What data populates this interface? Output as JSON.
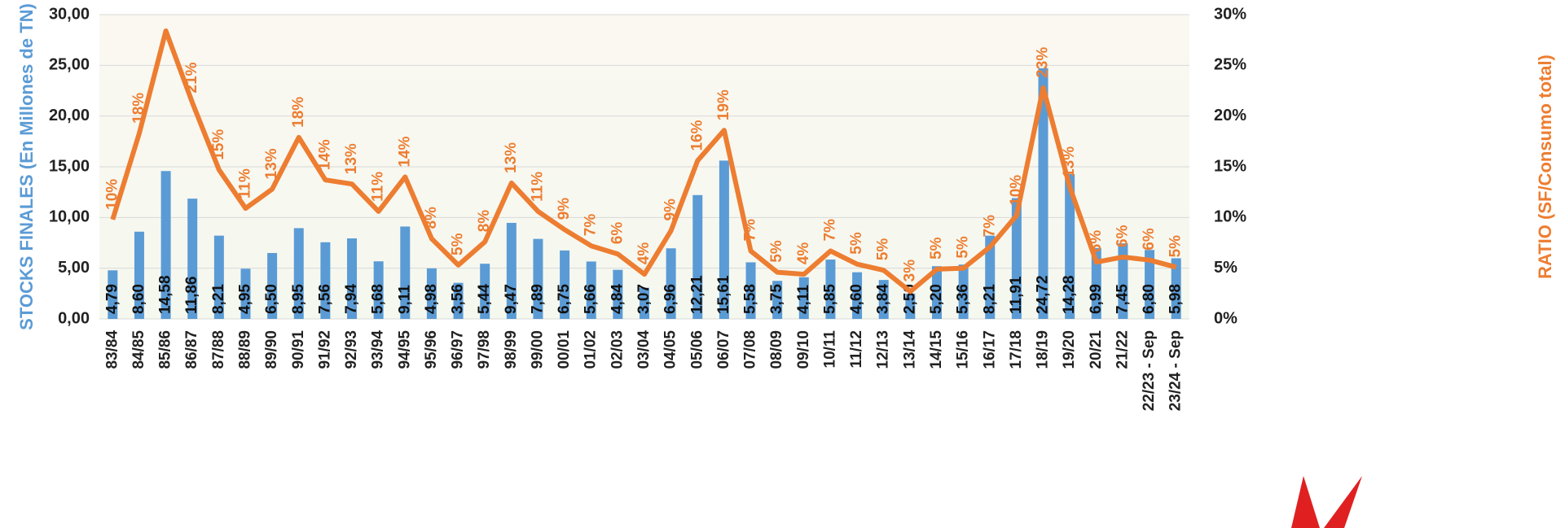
{
  "chart_data": {
    "type": "bar",
    "y_label": "STOCKS FINALES (En Millones de TN)",
    "y2_label": "RATIO (SF/Consumo total)",
    "categories": [
      "83/84",
      "84/85",
      "85/86",
      "86/87",
      "87/88",
      "88/89",
      "89/90",
      "90/91",
      "91/92",
      "92/93",
      "93/94",
      "94/95",
      "95/96",
      "96/97",
      "97/98",
      "98/99",
      "99/00",
      "00/01",
      "01/02",
      "02/03",
      "03/04",
      "04/05",
      "05/06",
      "06/07",
      "07/08",
      "08/09",
      "09/10",
      "10/11",
      "11/12",
      "12/13",
      "13/14",
      "14/15",
      "15/16",
      "16/17",
      "17/18",
      "18/19",
      "19/20",
      "20/21",
      "21/22",
      "22/23 - Sep",
      "23/24 - Sep"
    ],
    "series": [
      {
        "type": "bar",
        "color": "#5b9bd5",
        "values": [
          4.79,
          8.6,
          14.58,
          11.86,
          8.21,
          4.95,
          6.5,
          8.95,
          7.56,
          7.94,
          5.68,
          9.11,
          4.98,
          3.56,
          5.44,
          9.47,
          7.89,
          6.75,
          5.66,
          4.84,
          3.07,
          6.96,
          12.21,
          15.61,
          5.58,
          3.75,
          4.11,
          5.85,
          4.6,
          3.84,
          2.5,
          5.2,
          5.36,
          8.21,
          11.91,
          24.72,
          14.28,
          6.99,
          7.45,
          6.8,
          5.98
        ],
        "value_labels": [
          "4,79",
          "8,60",
          "14,58",
          "11,86",
          "8,21",
          "4,95",
          "6,50",
          "8,95",
          "7,56",
          "7,94",
          "5,68",
          "9,11",
          "4,98",
          "3,56",
          "5,44",
          "9,47",
          "7,89",
          "6,75",
          "5,66",
          "4,84",
          "3,07",
          "6,96",
          "12,21",
          "15,61",
          "5,58",
          "3,75",
          "4,11",
          "5,85",
          "4,60",
          "3,84",
          "2,50",
          "5,20",
          "5,36",
          "8,21",
          "11,91",
          "24,72",
          "14,28",
          "6,99",
          "7,45",
          "6,80",
          "5,98"
        ]
      },
      {
        "type": "line",
        "axis": "y2",
        "color": "#ed7d31",
        "values": [
          9.8,
          18.3,
          28.4,
          21.3,
          14.7,
          10.9,
          12.8,
          17.9,
          13.7,
          13.3,
          10.6,
          14.0,
          7.9,
          5.3,
          7.6,
          13.4,
          10.6,
          8.8,
          7.2,
          6.4,
          4.4,
          8.7,
          15.6,
          18.6,
          6.7,
          4.6,
          4.4,
          6.7,
          5.4,
          4.8,
          2.7,
          4.9,
          5.0,
          7.1,
          10.2,
          22.8,
          13.0,
          5.6,
          6.1,
          5.8,
          5.1
        ],
        "value_labels": [
          "10%",
          "18%",
          null,
          "21%",
          "15%",
          "11%",
          "13%",
          "18%",
          "14%",
          "13%",
          "11%",
          "14%",
          "8%",
          "5%",
          "8%",
          "13%",
          "11%",
          "9%",
          "7%",
          "6%",
          "4%",
          "9%",
          "16%",
          "19%",
          "7%",
          "5%",
          "4%",
          "7%",
          "5%",
          "5%",
          "3%",
          "5%",
          "5%",
          "7%",
          "10%",
          "23%",
          "13%",
          "6%",
          "6%",
          "6%",
          "5%"
        ]
      }
    ],
    "ylim": [
      0,
      30
    ],
    "yticks": [
      {
        "value": 0,
        "label": "0,00"
      },
      {
        "value": 5,
        "label": "5,00"
      },
      {
        "value": 10,
        "label": "10,00"
      },
      {
        "value": 15,
        "label": "15,00"
      },
      {
        "value": 20,
        "label": "20,00"
      },
      {
        "value": 25,
        "label": "25,00"
      },
      {
        "value": 30,
        "label": "30,00"
      }
    ],
    "y2lim": [
      0,
      30
    ],
    "y2ticks": [
      {
        "value": 0,
        "label": "0%"
      },
      {
        "value": 5,
        "label": "5%"
      },
      {
        "value": 10,
        "label": "10%"
      },
      {
        "value": 15,
        "label": "15%"
      },
      {
        "value": 20,
        "label": "20%"
      },
      {
        "value": 25,
        "label": "25%"
      },
      {
        "value": 30,
        "label": "30%"
      }
    ],
    "grid": true
  }
}
